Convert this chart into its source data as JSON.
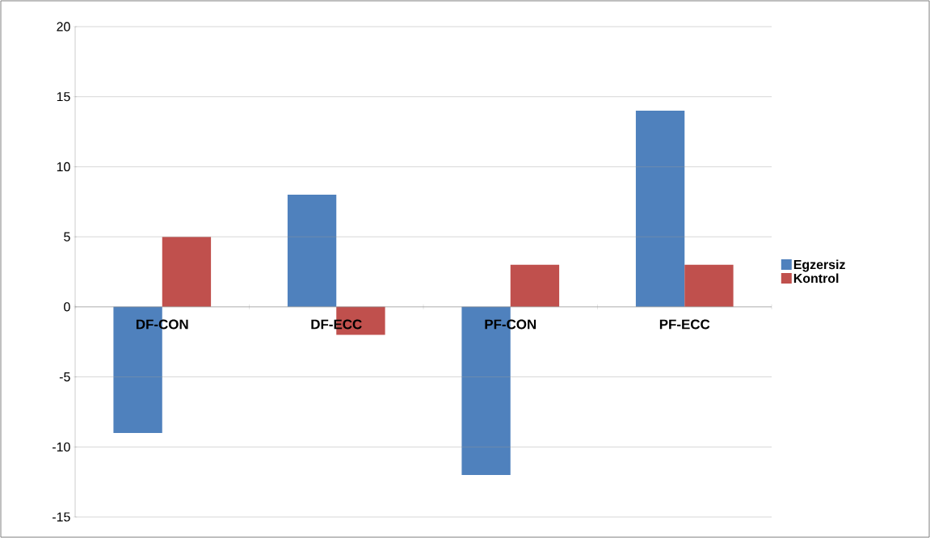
{
  "chart_data": {
    "type": "bar",
    "categories": [
      "DF-CON",
      "DF-ECC",
      "PF-CON",
      "PF-ECC"
    ],
    "series": [
      {
        "name": "Egzersiz",
        "color": "#4f81bd",
        "values": [
          -9,
          8,
          -12,
          14
        ]
      },
      {
        "name": "Kontrol",
        "color": "#c0504d",
        "values": [
          5,
          -2,
          3,
          3
        ]
      }
    ],
    "ylim": [
      -15,
      20
    ],
    "yticks": [
      -15,
      -10,
      -5,
      0,
      5,
      10,
      15,
      20
    ],
    "grid": "y",
    "legend": "right"
  }
}
